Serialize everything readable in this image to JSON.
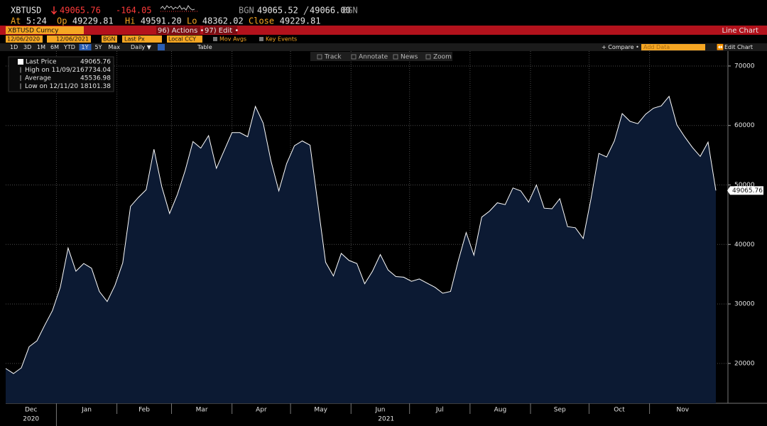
{
  "header": {
    "ticker": "XBTUSD",
    "last": "49065.76",
    "change": "-164.05",
    "source": "BGN",
    "bid": "49065.52",
    "ask": "49066.00",
    "source2": "BGN",
    "quote_line": [
      {
        "label": "At",
        "value": "5:24"
      },
      {
        "label": "Op",
        "value": "49229.81"
      },
      {
        "label": "Hi",
        "value": "49591.20"
      },
      {
        "label": "Lo",
        "value": "48362.02"
      },
      {
        "label": "Close",
        "value": "49229.81"
      }
    ]
  },
  "menu_bar": {
    "security": "XBTUSD Curncy",
    "actions": "96) Actions •",
    "edit": "97) Edit •",
    "view": "Line Chart"
  },
  "settings_bar": {
    "start_date": "12/06/2020",
    "end_date": "12/06/2021",
    "pricing_source": "BGN",
    "field": "Last Px",
    "currency": "Local CCY",
    "mov_avgs": "Mov Avgs",
    "key_events": "Key Events"
  },
  "period_bar": {
    "periods": [
      "1D",
      "3D",
      "1M",
      "6M",
      "YTD",
      "1Y",
      "5Y",
      "Max"
    ],
    "selected": "1Y",
    "frequency": "Daily ▼",
    "table": "Table",
    "compare": "+ Compare •",
    "add_data": "Add Data",
    "edit_chart": "Edit Chart"
  },
  "chart_tools": [
    "Track",
    "Annotate",
    "News",
    "Zoom"
  ],
  "chart_data": {
    "type": "line",
    "legend": [
      {
        "label": "Last Price",
        "value": 49065.76
      },
      {
        "label": "High on 11/09/21",
        "value": 67734.04
      },
      {
        "label": "Average",
        "value": 45536.98
      },
      {
        "label": "Low on 12/11/20",
        "value": 18101.38
      }
    ],
    "series": [
      {
        "name": "Last Price",
        "color": "#ffffff",
        "fill": "#0c1a33",
        "values": [
          19150,
          18300,
          19250,
          22800,
          23800,
          26400,
          28900,
          32800,
          39400,
          35500,
          36800,
          36000,
          32100,
          30400,
          33100,
          36900,
          46400,
          47900,
          49200,
          56000,
          49700,
          45200,
          48400,
          52400,
          57300,
          56200,
          58300,
          52800,
          55800,
          58800,
          58800,
          58100,
          63200,
          60400,
          54000,
          49000,
          53600,
          56600,
          57400,
          56700,
          46800,
          37000,
          34700,
          38500,
          37300,
          36800,
          33400,
          35500,
          38300,
          35700,
          34600,
          34500,
          33800,
          34200,
          33500,
          32800,
          31800,
          32100,
          37300,
          42000,
          38200,
          44600,
          45600,
          47000,
          46700,
          49500,
          49000,
          47100,
          50000,
          46100,
          46000,
          47700,
          43000,
          42800,
          41000,
          47700,
          55300,
          54700,
          57400,
          62000,
          60700,
          60300,
          61900,
          62900,
          63300,
          64900,
          60100,
          58100,
          56300,
          54800,
          57200,
          49065.76
        ]
      }
    ],
    "xlim": [
      0,
      91
    ],
    "xticks": [
      {
        "value": -1.25,
        "label": "Dec"
      },
      {
        "value": 6.5,
        "label": "Jan"
      },
      {
        "value": 14.25,
        "label": "Feb"
      },
      {
        "value": 21.25,
        "label": "Mar"
      },
      {
        "value": 29,
        "label": "Apr"
      },
      {
        "value": 36.5,
        "label": "May"
      },
      {
        "value": 44.25,
        "label": "Jun"
      },
      {
        "value": 51.75,
        "label": "Jul"
      },
      {
        "value": 59.5,
        "label": "Aug"
      },
      {
        "value": 67.25,
        "label": "Sep"
      },
      {
        "value": 74.75,
        "label": "Oct"
      },
      {
        "value": 82.5,
        "label": "Nov"
      }
    ],
    "years": [
      "2020",
      "2021"
    ],
    "ylim": [
      13300,
      72500
    ],
    "yticks": [
      20000,
      30000,
      40000,
      50000,
      60000,
      70000
    ],
    "grid": true
  }
}
